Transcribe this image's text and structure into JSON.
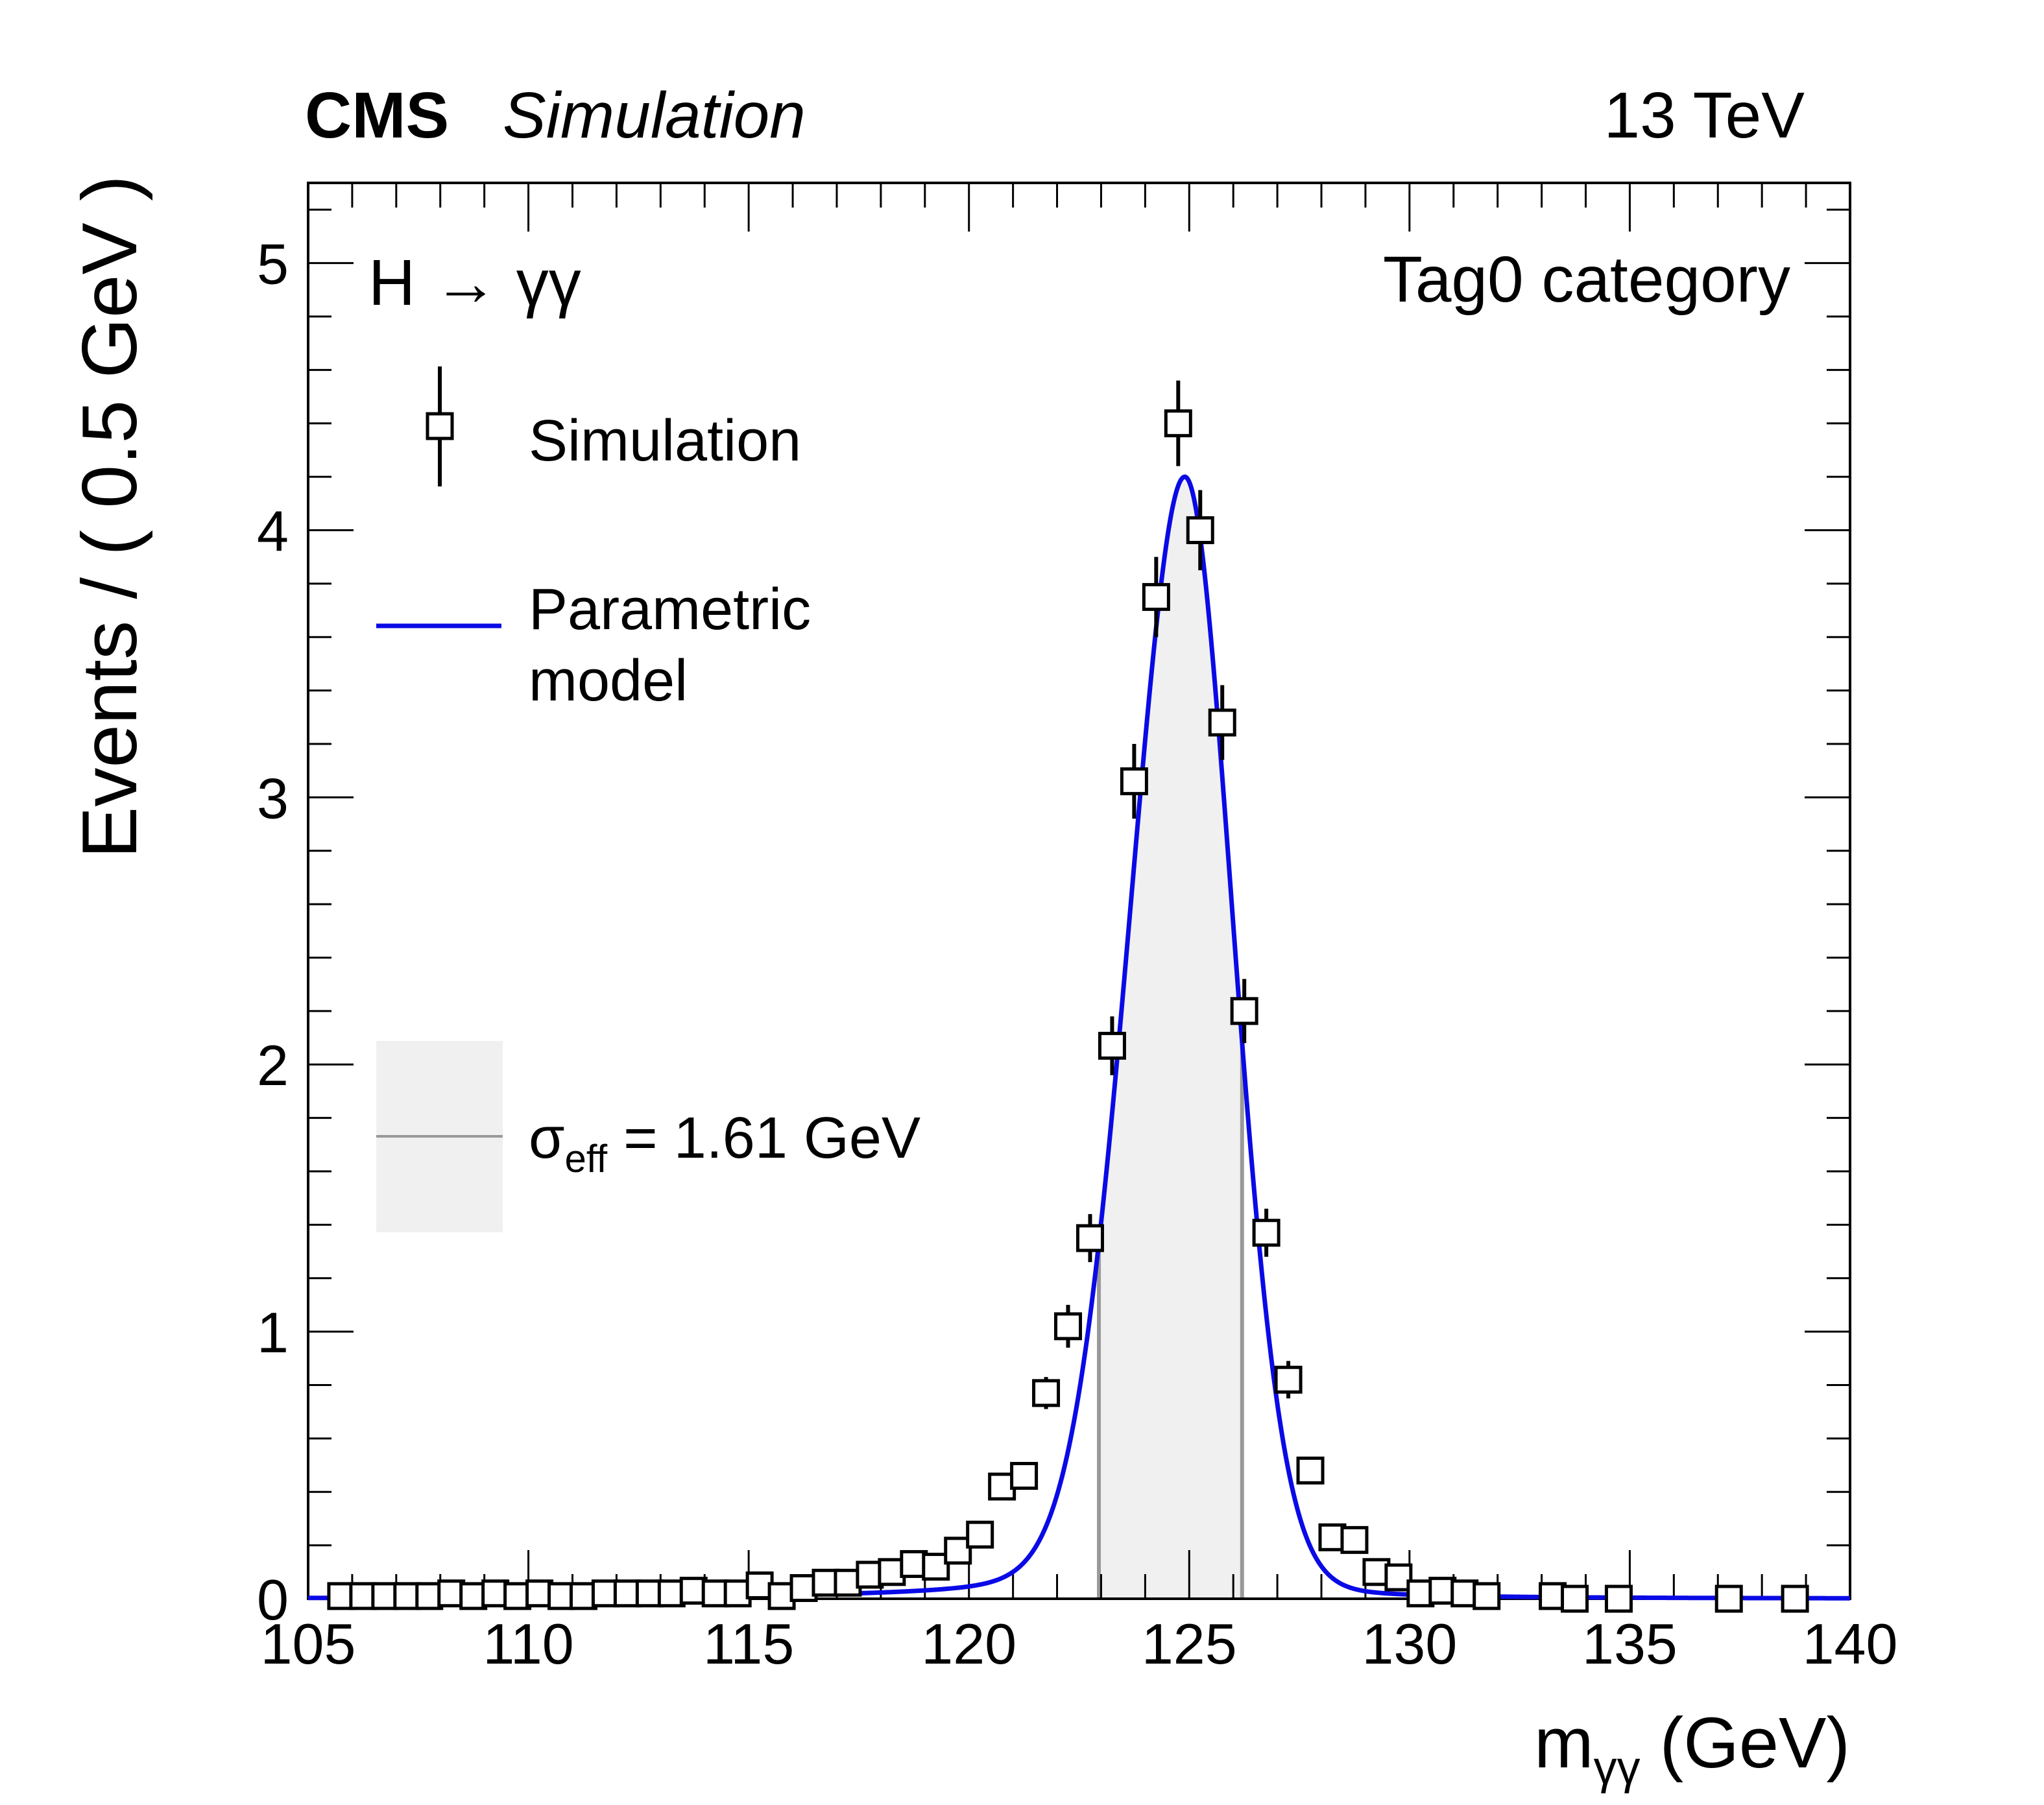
{
  "header": {
    "experiment": "CMS",
    "label": "Simulation",
    "energy": "13 TeV"
  },
  "annotations": {
    "process": "H → γγ",
    "category": "Tag0 category"
  },
  "legend": {
    "simulation": "Simulation",
    "model_line1": "Parametric",
    "model_line2": "model",
    "sigma_symbol": "σ",
    "sigma_sub": "eff",
    "sigma_text": "= 1.61 GeV"
  },
  "chart_data": {
    "type": "scatter",
    "xlabel_main": "m",
    "xlabel_sub": "γγ",
    "xlabel_unit": "(GeV)",
    "ylabel": "Events / ( 0.5 GeV )",
    "xlim": [
      105,
      140
    ],
    "ylim": [
      0,
      5.3
    ],
    "x_ticks": [
      105,
      110,
      115,
      120,
      125,
      130,
      135,
      140
    ],
    "y_ticks": [
      0,
      1,
      2,
      3,
      4,
      5
    ],
    "colors": {
      "model": "#0a0ae6",
      "band": "#f0f0f0",
      "band_edge": "#999999",
      "points": "#000000"
    },
    "sigma_eff_band": [
      122.95,
      126.2
    ],
    "series": [
      {
        "name": "Simulation",
        "style": "open-square-with-error",
        "x": [
          105.75,
          106.25,
          106.75,
          107.25,
          107.75,
          108.25,
          108.75,
          109.25,
          109.75,
          110.25,
          110.75,
          111.25,
          111.75,
          112.25,
          112.75,
          113.25,
          113.75,
          114.25,
          114.75,
          115.25,
          115.75,
          116.25,
          116.75,
          117.25,
          117.75,
          118.25,
          118.75,
          119.25,
          119.75,
          120.25,
          120.75,
          121.25,
          121.75,
          122.25,
          122.75,
          123.25,
          123.75,
          124.25,
          124.75,
          125.25,
          125.75,
          126.25,
          126.75,
          127.25,
          127.75,
          128.25,
          128.75,
          129.25,
          129.75,
          130.25,
          130.75,
          131.25,
          131.75,
          133.25,
          133.75,
          134.75,
          137.25,
          138.75
        ],
        "y": [
          0.01,
          0.01,
          0.01,
          0.01,
          0.01,
          0.02,
          0.01,
          0.02,
          0.01,
          0.02,
          0.01,
          0.01,
          0.02,
          0.02,
          0.02,
          0.02,
          0.03,
          0.02,
          0.02,
          0.05,
          0.01,
          0.04,
          0.06,
          0.06,
          0.09,
          0.1,
          0.13,
          0.12,
          0.18,
          0.24,
          0.42,
          0.46,
          0.77,
          1.02,
          1.35,
          2.07,
          3.06,
          3.75,
          4.4,
          4.0,
          3.28,
          2.2,
          1.37,
          0.82,
          0.48,
          0.23,
          0.22,
          0.1,
          0.08,
          0.02,
          0.03,
          0.02,
          0.01,
          0.01,
          0.0,
          0.0,
          0.0,
          0.0
        ],
        "err": [
          0.01,
          0.01,
          0.01,
          0.01,
          0.01,
          0.01,
          0.01,
          0.01,
          0.01,
          0.01,
          0.01,
          0.01,
          0.01,
          0.01,
          0.01,
          0.01,
          0.02,
          0.01,
          0.01,
          0.02,
          0.01,
          0.02,
          0.02,
          0.02,
          0.02,
          0.02,
          0.03,
          0.03,
          0.03,
          0.04,
          0.05,
          0.05,
          0.06,
          0.08,
          0.09,
          0.11,
          0.14,
          0.15,
          0.16,
          0.15,
          0.14,
          0.12,
          0.09,
          0.07,
          0.05,
          0.03,
          0.03,
          0.02,
          0.02,
          0.01,
          0.01,
          0.01,
          0.01,
          0.01,
          0.0,
          0.0,
          0.0,
          0.0
        ]
      },
      {
        "name": "Parametric model",
        "style": "line",
        "peak_x": 124.9,
        "peak_y": 4.2
      }
    ]
  }
}
